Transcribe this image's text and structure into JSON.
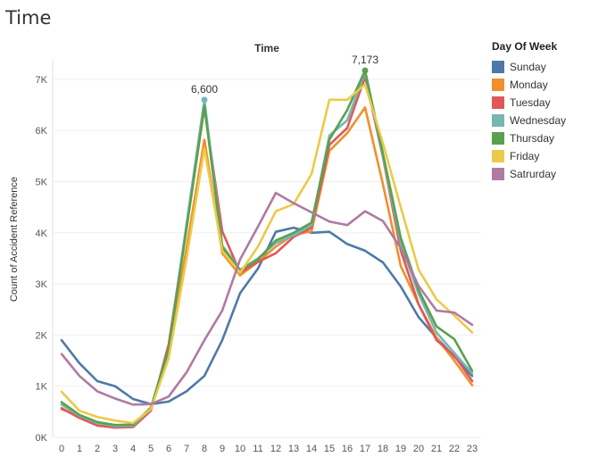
{
  "page": {
    "title": "Time"
  },
  "legend": {
    "title": "Day Of Week",
    "items": [
      {
        "label": "Sunday",
        "color": "#4e79a7"
      },
      {
        "label": "Monday",
        "color": "#f28e2b"
      },
      {
        "label": "Tuesday",
        "color": "#e15759"
      },
      {
        "label": "Wednesday",
        "color": "#76b7b2"
      },
      {
        "label": "Thursday",
        "color": "#59a14f"
      },
      {
        "label": "Friday",
        "color": "#edc948"
      },
      {
        "label": "Satrurday",
        "color": "#b07aa1"
      }
    ]
  },
  "chart_data": {
    "type": "line",
    "title": "Time",
    "xlabel": "",
    "ylabel": "Count of Accident Reference",
    "x": [
      0,
      1,
      2,
      3,
      4,
      5,
      6,
      7,
      8,
      9,
      10,
      11,
      12,
      13,
      14,
      15,
      16,
      17,
      18,
      19,
      20,
      21,
      22,
      23
    ],
    "ylim": [
      0,
      7400
    ],
    "yticks": [
      0,
      1000,
      2000,
      3000,
      4000,
      5000,
      6000,
      7000
    ],
    "ytick_labels": [
      "0K",
      "1K",
      "2K",
      "3K",
      "4K",
      "5K",
      "6K",
      "7K"
    ],
    "grid": "horizontal",
    "legend_position": "right",
    "series": [
      {
        "name": "Sunday",
        "color": "#4e79a7",
        "values": [
          1900,
          1450,
          1100,
          1000,
          750,
          650,
          700,
          900,
          1200,
          1900,
          2820,
          3300,
          4020,
          4100,
          4000,
          4020,
          3780,
          3650,
          3420,
          2950,
          2350,
          1950,
          1580,
          1200
        ]
      },
      {
        "name": "Monday",
        "color": "#f28e2b",
        "values": [
          550,
          420,
          280,
          220,
          230,
          580,
          1650,
          3700,
          5820,
          3600,
          3170,
          3430,
          3730,
          3960,
          4030,
          5600,
          5950,
          6450,
          4950,
          3350,
          2600,
          1950,
          1500,
          1020
        ]
      },
      {
        "name": "Tuesday",
        "color": "#e15759",
        "values": [
          570,
          380,
          230,
          190,
          200,
          520,
          1820,
          4120,
          6450,
          4030,
          3220,
          3430,
          3600,
          3920,
          4100,
          5720,
          6050,
          7050,
          5480,
          3650,
          2600,
          1900,
          1600,
          1100
        ]
      },
      {
        "name": "Wednesday",
        "color": "#76b7b2",
        "values": [
          640,
          420,
          280,
          220,
          230,
          560,
          1720,
          4180,
          6600,
          3750,
          3280,
          3500,
          3800,
          3950,
          4150,
          5900,
          6200,
          7140,
          5500,
          3800,
          2800,
          2050,
          1650,
          1250
        ]
      },
      {
        "name": "Thursday",
        "color": "#59a14f",
        "values": [
          690,
          440,
          300,
          240,
          250,
          580,
          1730,
          4080,
          6480,
          3720,
          3260,
          3480,
          3850,
          4000,
          4200,
          5820,
          6400,
          7173,
          5550,
          3900,
          2880,
          2170,
          1920,
          1300
        ]
      },
      {
        "name": "Friday",
        "color": "#edc948",
        "values": [
          890,
          520,
          400,
          330,
          280,
          550,
          1550,
          3500,
          5650,
          3650,
          3220,
          3730,
          4420,
          4560,
          5150,
          6600,
          6600,
          6900,
          5750,
          4500,
          3280,
          2700,
          2380,
          2050
        ]
      },
      {
        "name": "Satrurday",
        "color": "#b07aa1",
        "values": [
          1630,
          1200,
          900,
          760,
          640,
          650,
          800,
          1270,
          1900,
          2480,
          3480,
          4120,
          4780,
          4580,
          4400,
          4220,
          4150,
          4420,
          4230,
          3700,
          2960,
          2480,
          2440,
          2200
        ]
      }
    ],
    "annotations": [
      {
        "label": "6,600",
        "x": 8,
        "y": 6600,
        "series": "Wednesday"
      },
      {
        "label": "7,173",
        "x": 17,
        "y": 7173,
        "series": "Thursday"
      }
    ]
  }
}
